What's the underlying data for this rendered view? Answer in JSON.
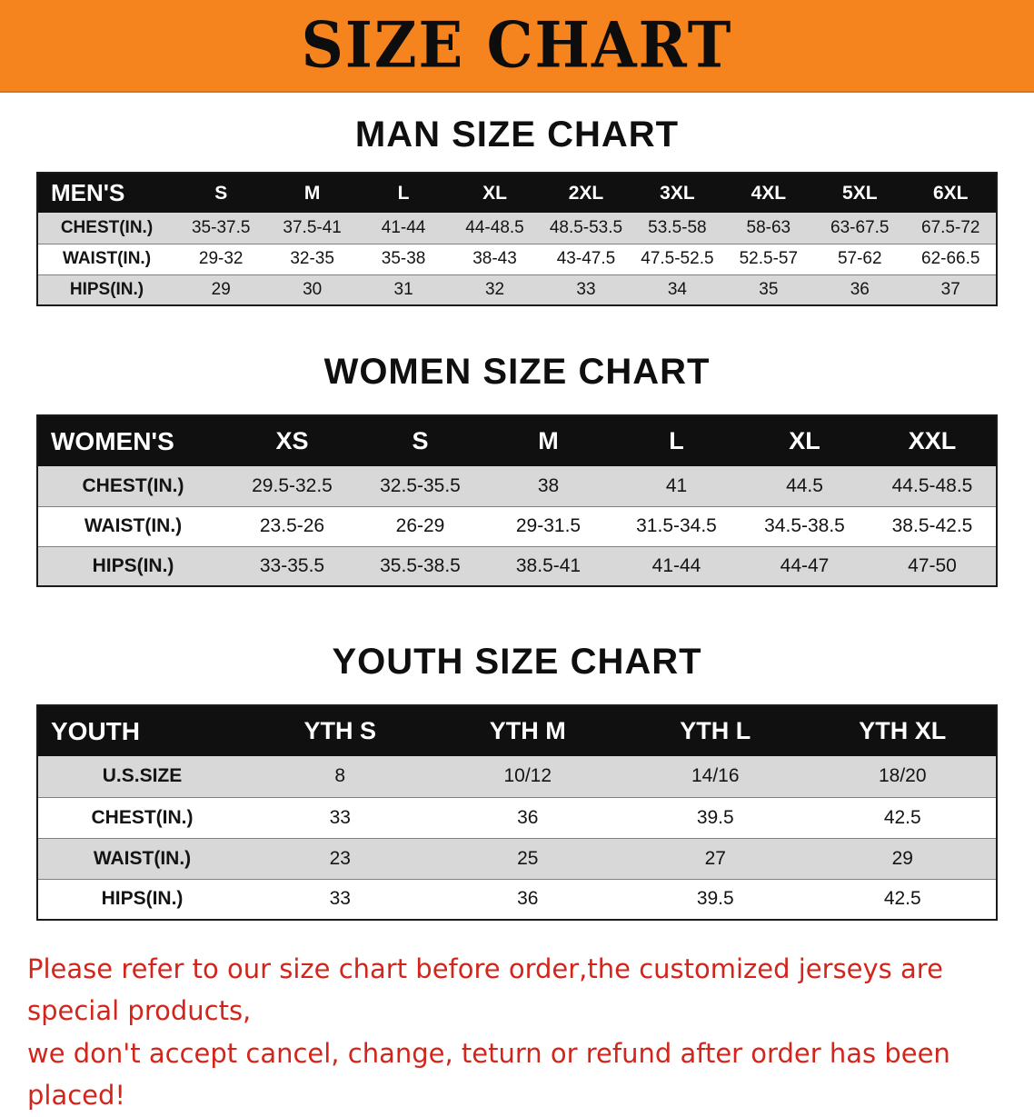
{
  "colors": {
    "banner_bg": "#f5841e",
    "header_bg": "#101010",
    "shaded_row": "#d8d8d8",
    "footer_text": "#d2251c"
  },
  "banner": {
    "title": "SIZE CHART"
  },
  "sections": [
    {
      "heading": "MAN SIZE CHART",
      "table": {
        "header": [
          "MEN'S",
          "S",
          "M",
          "L",
          "XL",
          "2XL",
          "3XL",
          "4XL",
          "5XL",
          "6XL"
        ],
        "rows": [
          {
            "label": "CHEST(IN.)",
            "values": [
              "35-37.5",
              "37.5-41",
              "41-44",
              "44-48.5",
              "48.5-53.5",
              "53.5-58",
              "58-63",
              "63-67.5",
              "67.5-72"
            ]
          },
          {
            "label": "WAIST(IN.)",
            "values": [
              "29-32",
              "32-35",
              "35-38",
              "38-43",
              "43-47.5",
              "47.5-52.5",
              "52.5-57",
              "57-62",
              "62-66.5"
            ]
          },
          {
            "label": "HIPS(IN.)",
            "values": [
              "29",
              "30",
              "31",
              "32",
              "33",
              "34",
              "35",
              "36",
              "37"
            ]
          }
        ]
      }
    },
    {
      "heading": "WOMEN SIZE CHART",
      "table": {
        "header": [
          "WOMEN'S",
          "XS",
          "S",
          "M",
          "L",
          "XL",
          "XXL"
        ],
        "rows": [
          {
            "label": "CHEST(IN.)",
            "values": [
              "29.5-32.5",
              "32.5-35.5",
              "38",
              "41",
              "44.5",
              "44.5-48.5"
            ]
          },
          {
            "label": "WAIST(IN.)",
            "values": [
              "23.5-26",
              "26-29",
              "29-31.5",
              "31.5-34.5",
              "34.5-38.5",
              "38.5-42.5"
            ]
          },
          {
            "label": "HIPS(IN.)",
            "values": [
              "33-35.5",
              "35.5-38.5",
              "38.5-41",
              "41-44",
              "44-47",
              "47-50"
            ]
          }
        ]
      }
    },
    {
      "heading": "YOUTH SIZE CHART",
      "table": {
        "header": [
          "YOUTH",
          "YTH S",
          "YTH M",
          "YTH L",
          "YTH XL"
        ],
        "rows": [
          {
            "label": "U.S.SIZE",
            "values": [
              "8",
              "10/12",
              "14/16",
              "18/20"
            ]
          },
          {
            "label": "CHEST(IN.)",
            "values": [
              "33",
              "36",
              "39.5",
              "42.5"
            ]
          },
          {
            "label": "WAIST(IN.)",
            "values": [
              "23",
              "25",
              "27",
              "29"
            ]
          },
          {
            "label": "HIPS(IN.)",
            "values": [
              "33",
              "36",
              "39.5",
              "42.5"
            ]
          }
        ]
      }
    }
  ],
  "footer": {
    "line1": "Please refer to our size chart before order,the customized jerseys are special products,",
    "line2": "we don't accept cancel, change, teturn or refund after order has been placed!"
  }
}
